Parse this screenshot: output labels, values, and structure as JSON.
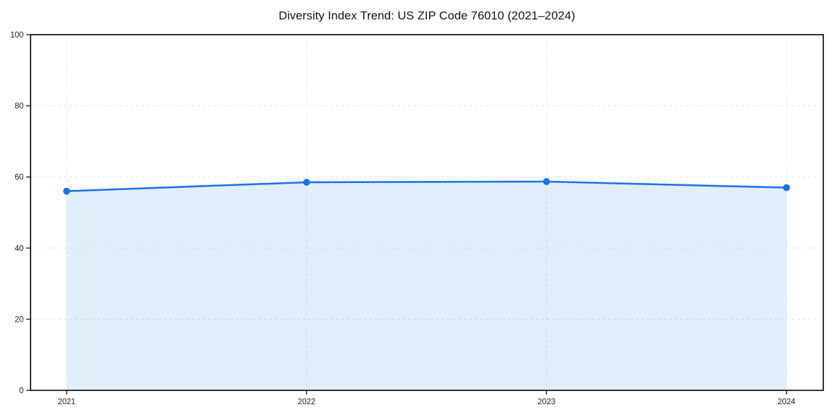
{
  "chart_data": {
    "type": "area",
    "title": "Diversity Index Trend: US ZIP Code 76010 (2021–2024)",
    "categories": [
      "2021",
      "2022",
      "2023",
      "2024"
    ],
    "series": [
      {
        "name": "Diversity Index",
        "values": [
          56.0,
          58.5,
          58.7,
          57.0
        ]
      }
    ],
    "xlabel": "",
    "ylabel": "",
    "ylim": [
      0,
      100
    ],
    "yticks": [
      0,
      20,
      40,
      60,
      80,
      100
    ],
    "grid": true,
    "legend_position": "none",
    "line_color": "#1a73e8",
    "marker_color": "#1a73e8",
    "fill_color": "rgba(26, 115, 232, 0.12)",
    "gridline_color": "#e2e2e2",
    "frame_color": "#1a1a1a",
    "tick_label_color": "#1a1a1a"
  }
}
